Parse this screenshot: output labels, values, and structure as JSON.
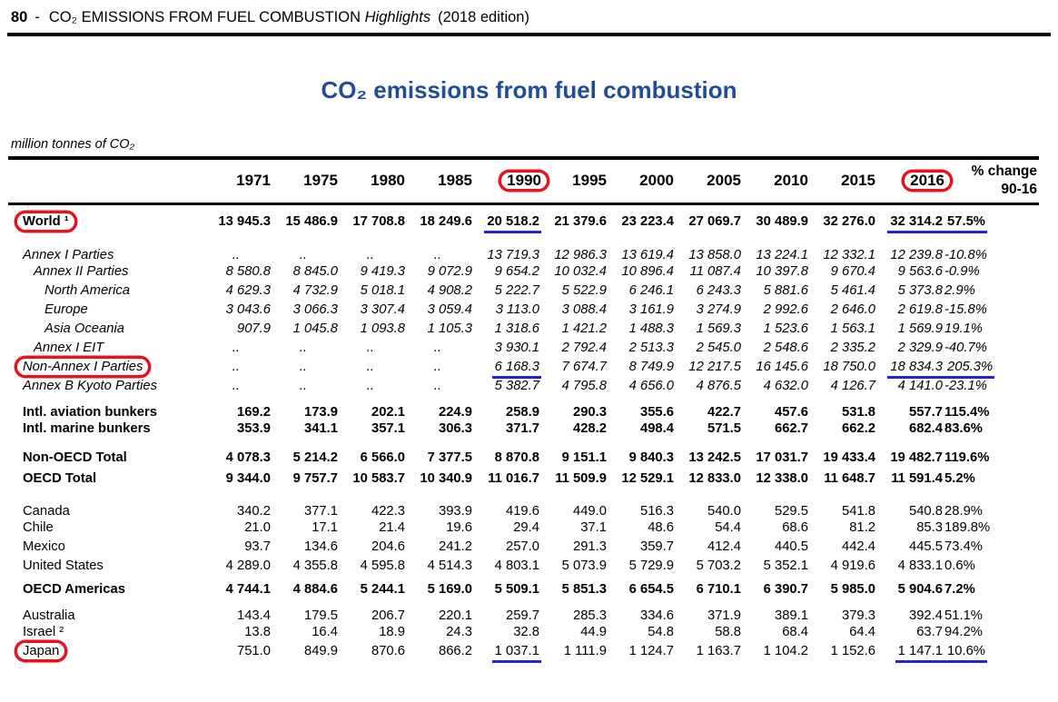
{
  "page_header": {
    "page_number": "80",
    "separator": "-",
    "title_main": "CO₂ EMISSIONS FROM FUEL COMBUSTION",
    "title_italic": "Highlights",
    "title_suffix": "(2018 edition)"
  },
  "title": "CO₂ emissions from fuel combustion",
  "unit_label": "million tonnes of CO₂",
  "annotations": {
    "oval_color": "#e8111d",
    "underline_color": "#2424cf",
    "title_color": "#1f4e96"
  },
  "table": {
    "columns": [
      "1971",
      "1975",
      "1980",
      "1985",
      "1990",
      "1995",
      "2000",
      "2005",
      "2010",
      "2015",
      "2016"
    ],
    "circled_columns": [
      "1990",
      "2016"
    ],
    "pct_header_line1": "% change",
    "pct_header_line2": "90-16",
    "rows": [
      {
        "label": "World ¹",
        "style": "bold",
        "indent": 0,
        "oval": true,
        "gap": "",
        "values": [
          "13 945.3",
          "15 486.9",
          "17 708.8",
          "18 249.6",
          "20 518.2",
          "21 379.6",
          "23 223.4",
          "27 069.7",
          "30 489.9",
          "32 276.0",
          "32 314.2"
        ],
        "pct": "57.5%",
        "underline_values": [
          4,
          10
        ],
        "underline_pct": true
      },
      {
        "label": "Annex I Parties",
        "style": "italic",
        "indent": 0,
        "gap": "lg",
        "values": [
          "..",
          "..",
          "..",
          "..",
          "13 719.3",
          "12 986.3",
          "13 619.4",
          "13 858.0",
          "13 224.1",
          "12 332.1",
          "12 239.8"
        ],
        "pct": "-10.8%"
      },
      {
        "label": "Annex II Parties",
        "style": "italic",
        "indent": 1,
        "values": [
          "8 580.8",
          "8 845.0",
          "9 419.3",
          "9 072.9",
          "9 654.2",
          "10 032.4",
          "10 896.4",
          "11 087.4",
          "10 397.8",
          "9 670.4",
          "9 563.6"
        ],
        "pct": "-0.9%"
      },
      {
        "label": "North America",
        "style": "italic",
        "indent": 2,
        "values": [
          "4 629.3",
          "4 732.9",
          "5 018.1",
          "4 908.2",
          "5 222.7",
          "5 522.9",
          "6 246.1",
          "6 243.3",
          "5 881.6",
          "5 461.4",
          "5 373.8"
        ],
        "pct": "2.9%"
      },
      {
        "label": "Europe",
        "style": "italic",
        "indent": 2,
        "values": [
          "3 043.6",
          "3 066.3",
          "3 307.4",
          "3 059.4",
          "3 113.0",
          "3 088.4",
          "3 161.9",
          "3 274.9",
          "2 992.6",
          "2 646.0",
          "2 619.8"
        ],
        "pct": "-15.8%"
      },
      {
        "label": "Asia Oceania",
        "style": "italic",
        "indent": 2,
        "values": [
          "907.9",
          "1 045.8",
          "1 093.8",
          "1 105.3",
          "1 318.6",
          "1 421.2",
          "1 488.3",
          "1 569.3",
          "1 523.6",
          "1 563.1",
          "1 569.9"
        ],
        "pct": "19.1%"
      },
      {
        "label": "Annex I EIT",
        "style": "italic",
        "indent": 1,
        "values": [
          "..",
          "..",
          "..",
          "..",
          "3 930.1",
          "2 792.4",
          "2 513.3",
          "2 545.0",
          "2 548.6",
          "2 335.2",
          "2 329.9"
        ],
        "pct": "-40.7%"
      },
      {
        "label": "Non-Annex I Parties",
        "style": "italic",
        "indent": 0,
        "oval": true,
        "values": [
          "..",
          "..",
          "..",
          "..",
          "6 168.3",
          "7 674.7",
          "8 749.9",
          "12 217.5",
          "16 145.6",
          "18 750.0",
          "18 834.3"
        ],
        "pct": "205.3%",
        "underline_values": [
          4,
          10
        ],
        "underline_pct": true
      },
      {
        "label": "Annex B Kyoto Parties",
        "style": "italic",
        "indent": 0,
        "values": [
          "..",
          "..",
          "..",
          "..",
          "5 382.7",
          "4 795.8",
          "4 656.0",
          "4 876.5",
          "4 632.0",
          "4 126.7",
          "4 141.0"
        ],
        "pct": "-23.1%"
      },
      {
        "label": "Intl. aviation bunkers",
        "style": "bold",
        "indent": 0,
        "gap": "sm2",
        "values": [
          "169.2",
          "173.9",
          "202.1",
          "224.9",
          "258.9",
          "290.3",
          "355.6",
          "422.7",
          "457.6",
          "531.8",
          "557.7"
        ],
        "pct": "115.4%"
      },
      {
        "label": "Intl. marine bunkers",
        "style": "bold",
        "indent": 0,
        "values": [
          "353.9",
          "341.1",
          "357.1",
          "306.3",
          "371.7",
          "428.2",
          "498.4",
          "571.5",
          "662.7",
          "662.2",
          "682.4"
        ],
        "pct": "83.6%"
      },
      {
        "label": "Non-OECD Total",
        "style": "bold",
        "indent": 0,
        "gap": "md",
        "values": [
          "4 078.3",
          "5 214.2",
          "6 566.0",
          "7 377.5",
          "8 870.8",
          "9 151.1",
          "9 840.3",
          "13 242.5",
          "17 031.7",
          "19 433.4",
          "19 482.7"
        ],
        "pct": "119.6%"
      },
      {
        "label": "OECD Total",
        "style": "bold",
        "indent": 0,
        "gap": "sm",
        "values": [
          "9 344.0",
          "9 757.7",
          "10 583.7",
          "10 340.9",
          "11 016.7",
          "11 509.9",
          "12 529.1",
          "12 833.0",
          "12 338.0",
          "11 648.7",
          "11 591.4"
        ],
        "pct": "5.2%"
      },
      {
        "label": "Canada",
        "style": "plain",
        "indent": 0,
        "gap": "lg",
        "values": [
          "340.2",
          "377.1",
          "422.3",
          "393.9",
          "419.6",
          "449.0",
          "516.3",
          "540.0",
          "529.5",
          "541.8",
          "540.8"
        ],
        "pct": "28.9%"
      },
      {
        "label": "Chile",
        "style": "plain",
        "indent": 0,
        "values": [
          "21.0",
          "17.1",
          "21.4",
          "19.6",
          "29.4",
          "37.1",
          "48.6",
          "54.4",
          "68.6",
          "81.2",
          "85.3"
        ],
        "pct": "189.8%"
      },
      {
        "label": "Mexico",
        "style": "plain",
        "indent": 0,
        "values": [
          "93.7",
          "134.6",
          "204.6",
          "241.2",
          "257.0",
          "291.3",
          "359.7",
          "412.4",
          "440.5",
          "442.4",
          "445.5"
        ],
        "pct": "73.4%"
      },
      {
        "label": "United States",
        "style": "plain",
        "indent": 0,
        "values": [
          "4 289.0",
          "4 355.8",
          "4 595.8",
          "4 514.3",
          "4 803.1",
          "5 073.9",
          "5 729.9",
          "5 703.2",
          "5 352.1",
          "4 919.6",
          "4 833.1"
        ],
        "pct": "0.6%"
      },
      {
        "label": "OECD Americas",
        "style": "bold",
        "indent": 0,
        "gap": "sm",
        "values": [
          "4 744.1",
          "4 884.6",
          "5 244.1",
          "5 169.0",
          "5 509.1",
          "5 851.3",
          "6 654.5",
          "6 710.1",
          "6 390.7",
          "5 985.0",
          "5 904.6"
        ],
        "pct": "7.2%"
      },
      {
        "label": "Australia",
        "style": "plain",
        "indent": 0,
        "gap": "md",
        "values": [
          "143.4",
          "179.5",
          "206.7",
          "220.1",
          "259.7",
          "285.3",
          "334.6",
          "371.9",
          "389.1",
          "379.3",
          "392.4"
        ],
        "pct": "51.1%"
      },
      {
        "label": "Israel ²",
        "style": "plain",
        "indent": 0,
        "values": [
          "13.8",
          "16.4",
          "18.9",
          "24.3",
          "32.8",
          "44.9",
          "54.8",
          "58.8",
          "68.4",
          "64.4",
          "63.7"
        ],
        "pct": "94.2%"
      },
      {
        "label": "Japan",
        "style": "plain",
        "indent": 0,
        "oval": true,
        "values": [
          "751.0",
          "849.9",
          "870.6",
          "866.2",
          "1 037.1",
          "1 111.9",
          "1 124.7",
          "1 163.7",
          "1 104.2",
          "1 152.6",
          "1 147.1"
        ],
        "pct": "10.6%",
        "underline_values": [
          4,
          10
        ],
        "underline_pct": true
      }
    ]
  }
}
